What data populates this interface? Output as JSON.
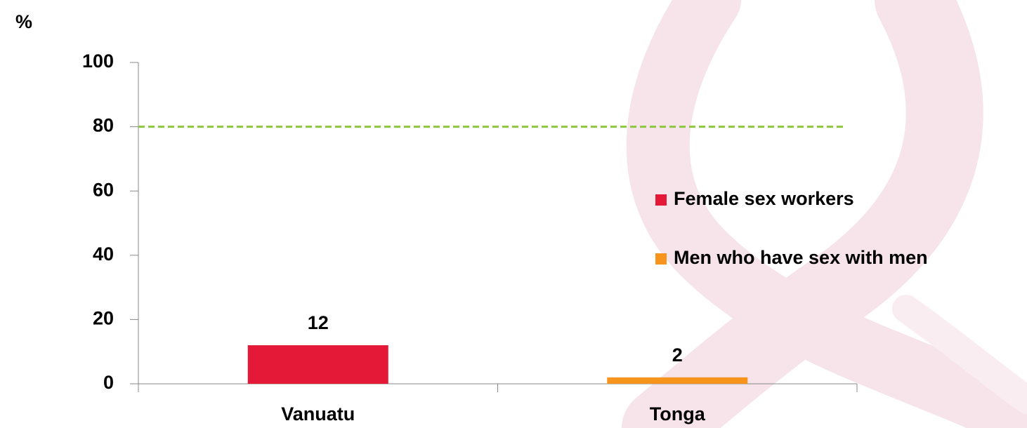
{
  "chart_data": {
    "type": "bar",
    "y_label": "%",
    "categories": [
      "Vanuatu",
      "Tonga"
    ],
    "series": [
      {
        "name": "Female sex workers",
        "color": "#e31937",
        "values": [
          12,
          null
        ]
      },
      {
        "name": "Men who have sex with men",
        "color": "#f7941d",
        "values": [
          null,
          2
        ]
      }
    ],
    "ylim": [
      0,
      100
    ],
    "yticks": [
      0,
      20,
      40,
      60,
      80,
      100
    ],
    "target": 80,
    "target_color": "#8dc63f",
    "legend": "right"
  }
}
